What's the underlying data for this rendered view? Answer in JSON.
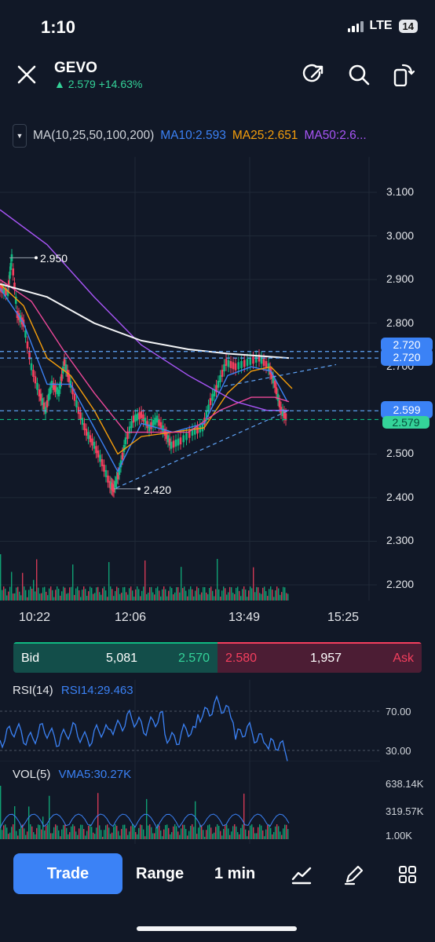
{
  "status_bar": {
    "time": "1:10",
    "network": "LTE",
    "battery": "14"
  },
  "header": {
    "symbol": "GEVO",
    "price": "2.579",
    "change": "+14.63%",
    "trend_icon": "up-triangle-icon"
  },
  "ma_row": {
    "label": "MA(10,25,50,100,200)",
    "ma10": "MA10:2.593",
    "ma25": "MA25:2.651",
    "ma50": "MA50:2.6...",
    "colors": {
      "ma10": "#3b82f6",
      "ma25": "#f59e0b",
      "ma50": "#a855f7",
      "ma100": "#ec4899",
      "ma200": "#f3f4f6"
    }
  },
  "chart": {
    "y_ticks": [
      "3.100",
      "3.000",
      "2.900",
      "2.800",
      "2.700",
      "2.600",
      "2.500",
      "2.400",
      "2.300",
      "2.200"
    ],
    "x_ticks": [
      "10:22",
      "12:06",
      "13:49",
      "15:25"
    ],
    "high_label": "2.950",
    "low_label": "2.420",
    "tag_top_hidden": "2.720",
    "tag_2720": "2.720",
    "tag_2599": "2.599",
    "tag_2579": "2.579"
  },
  "bid_ask": {
    "bid_label": "Bid",
    "bid_size": "5,081",
    "bid_price": "2.570",
    "ask_price": "2.580",
    "ask_size": "1,957",
    "ask_label": "Ask"
  },
  "rsi": {
    "label": "RSI(14)",
    "value": "RSI14:29.463",
    "ticks": [
      "70.00",
      "30.00"
    ]
  },
  "vol": {
    "label": "VOL(5)",
    "value": "VMA5:30.27K",
    "ticks": [
      "638.14K",
      "319.57K",
      "1.00K"
    ]
  },
  "bottom_bar": {
    "trade": "Trade",
    "range": "Range",
    "interval": "1 min"
  }
}
